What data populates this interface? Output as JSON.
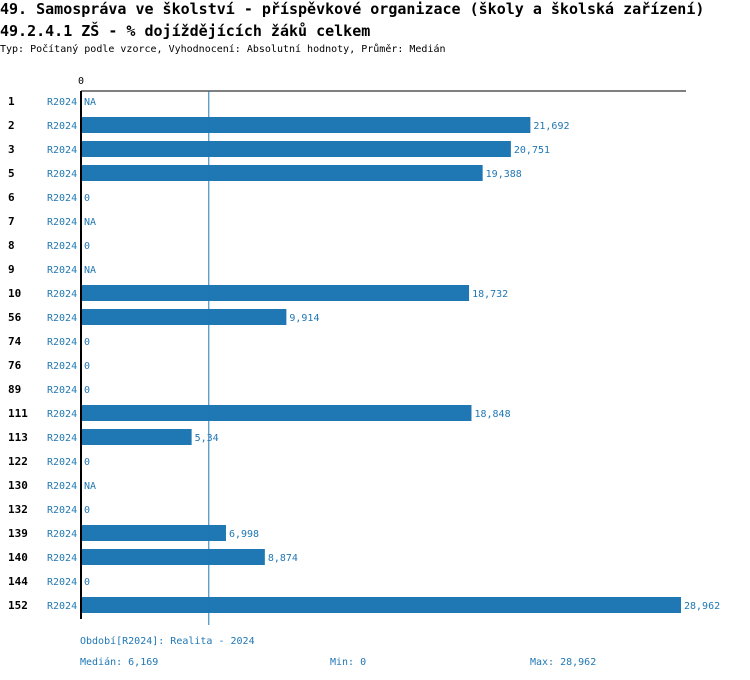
{
  "page": {
    "title_line1": "49. Samospráva ve školství - příspěvkové organizace (školy a školská zařízení)",
    "title_line2": "49.2.4.1 ZŠ - % dojíždějících žáků celkem",
    "subtitle": "Typ: Počítaný podle vzorce, Vyhodnocení: Absolutní hodnoty, Průměr: Medián"
  },
  "chart_data": {
    "type": "bar",
    "orientation": "horizontal",
    "axis_zero_label": "0",
    "series_label": "R2024",
    "xlim": [
      0,
      29
    ],
    "median_line": 6.169,
    "bar_color": "#1f77b4",
    "rows": [
      {
        "category": "1",
        "value": null,
        "label": "NA"
      },
      {
        "category": "2",
        "value": 21.692,
        "label": "21,692"
      },
      {
        "category": "3",
        "value": 20.751,
        "label": "20,751"
      },
      {
        "category": "5",
        "value": 19.388,
        "label": "19,388"
      },
      {
        "category": "6",
        "value": 0,
        "label": "0"
      },
      {
        "category": "7",
        "value": null,
        "label": "NA"
      },
      {
        "category": "8",
        "value": 0,
        "label": "0"
      },
      {
        "category": "9",
        "value": null,
        "label": "NA"
      },
      {
        "category": "10",
        "value": 18.732,
        "label": "18,732"
      },
      {
        "category": "56",
        "value": 9.914,
        "label": "9,914"
      },
      {
        "category": "74",
        "value": 0,
        "label": "0"
      },
      {
        "category": "76",
        "value": 0,
        "label": "0"
      },
      {
        "category": "89",
        "value": 0,
        "label": "0"
      },
      {
        "category": "111",
        "value": 18.848,
        "label": "18,848"
      },
      {
        "category": "113",
        "value": 5.34,
        "label": "5,34"
      },
      {
        "category": "122",
        "value": 0,
        "label": "0"
      },
      {
        "category": "130",
        "value": null,
        "label": "NA"
      },
      {
        "category": "132",
        "value": 0,
        "label": "0"
      },
      {
        "category": "139",
        "value": 6.998,
        "label": "6,998"
      },
      {
        "category": "140",
        "value": 8.874,
        "label": "8,874"
      },
      {
        "category": "144",
        "value": 0,
        "label": "0"
      },
      {
        "category": "152",
        "value": 28.962,
        "label": "28,962"
      }
    ]
  },
  "footer": {
    "period": "Období[R2024]: Realita - 2024",
    "median": "Medián: 6,169",
    "min": "Min: 0",
    "max": "Max: 28,962"
  }
}
